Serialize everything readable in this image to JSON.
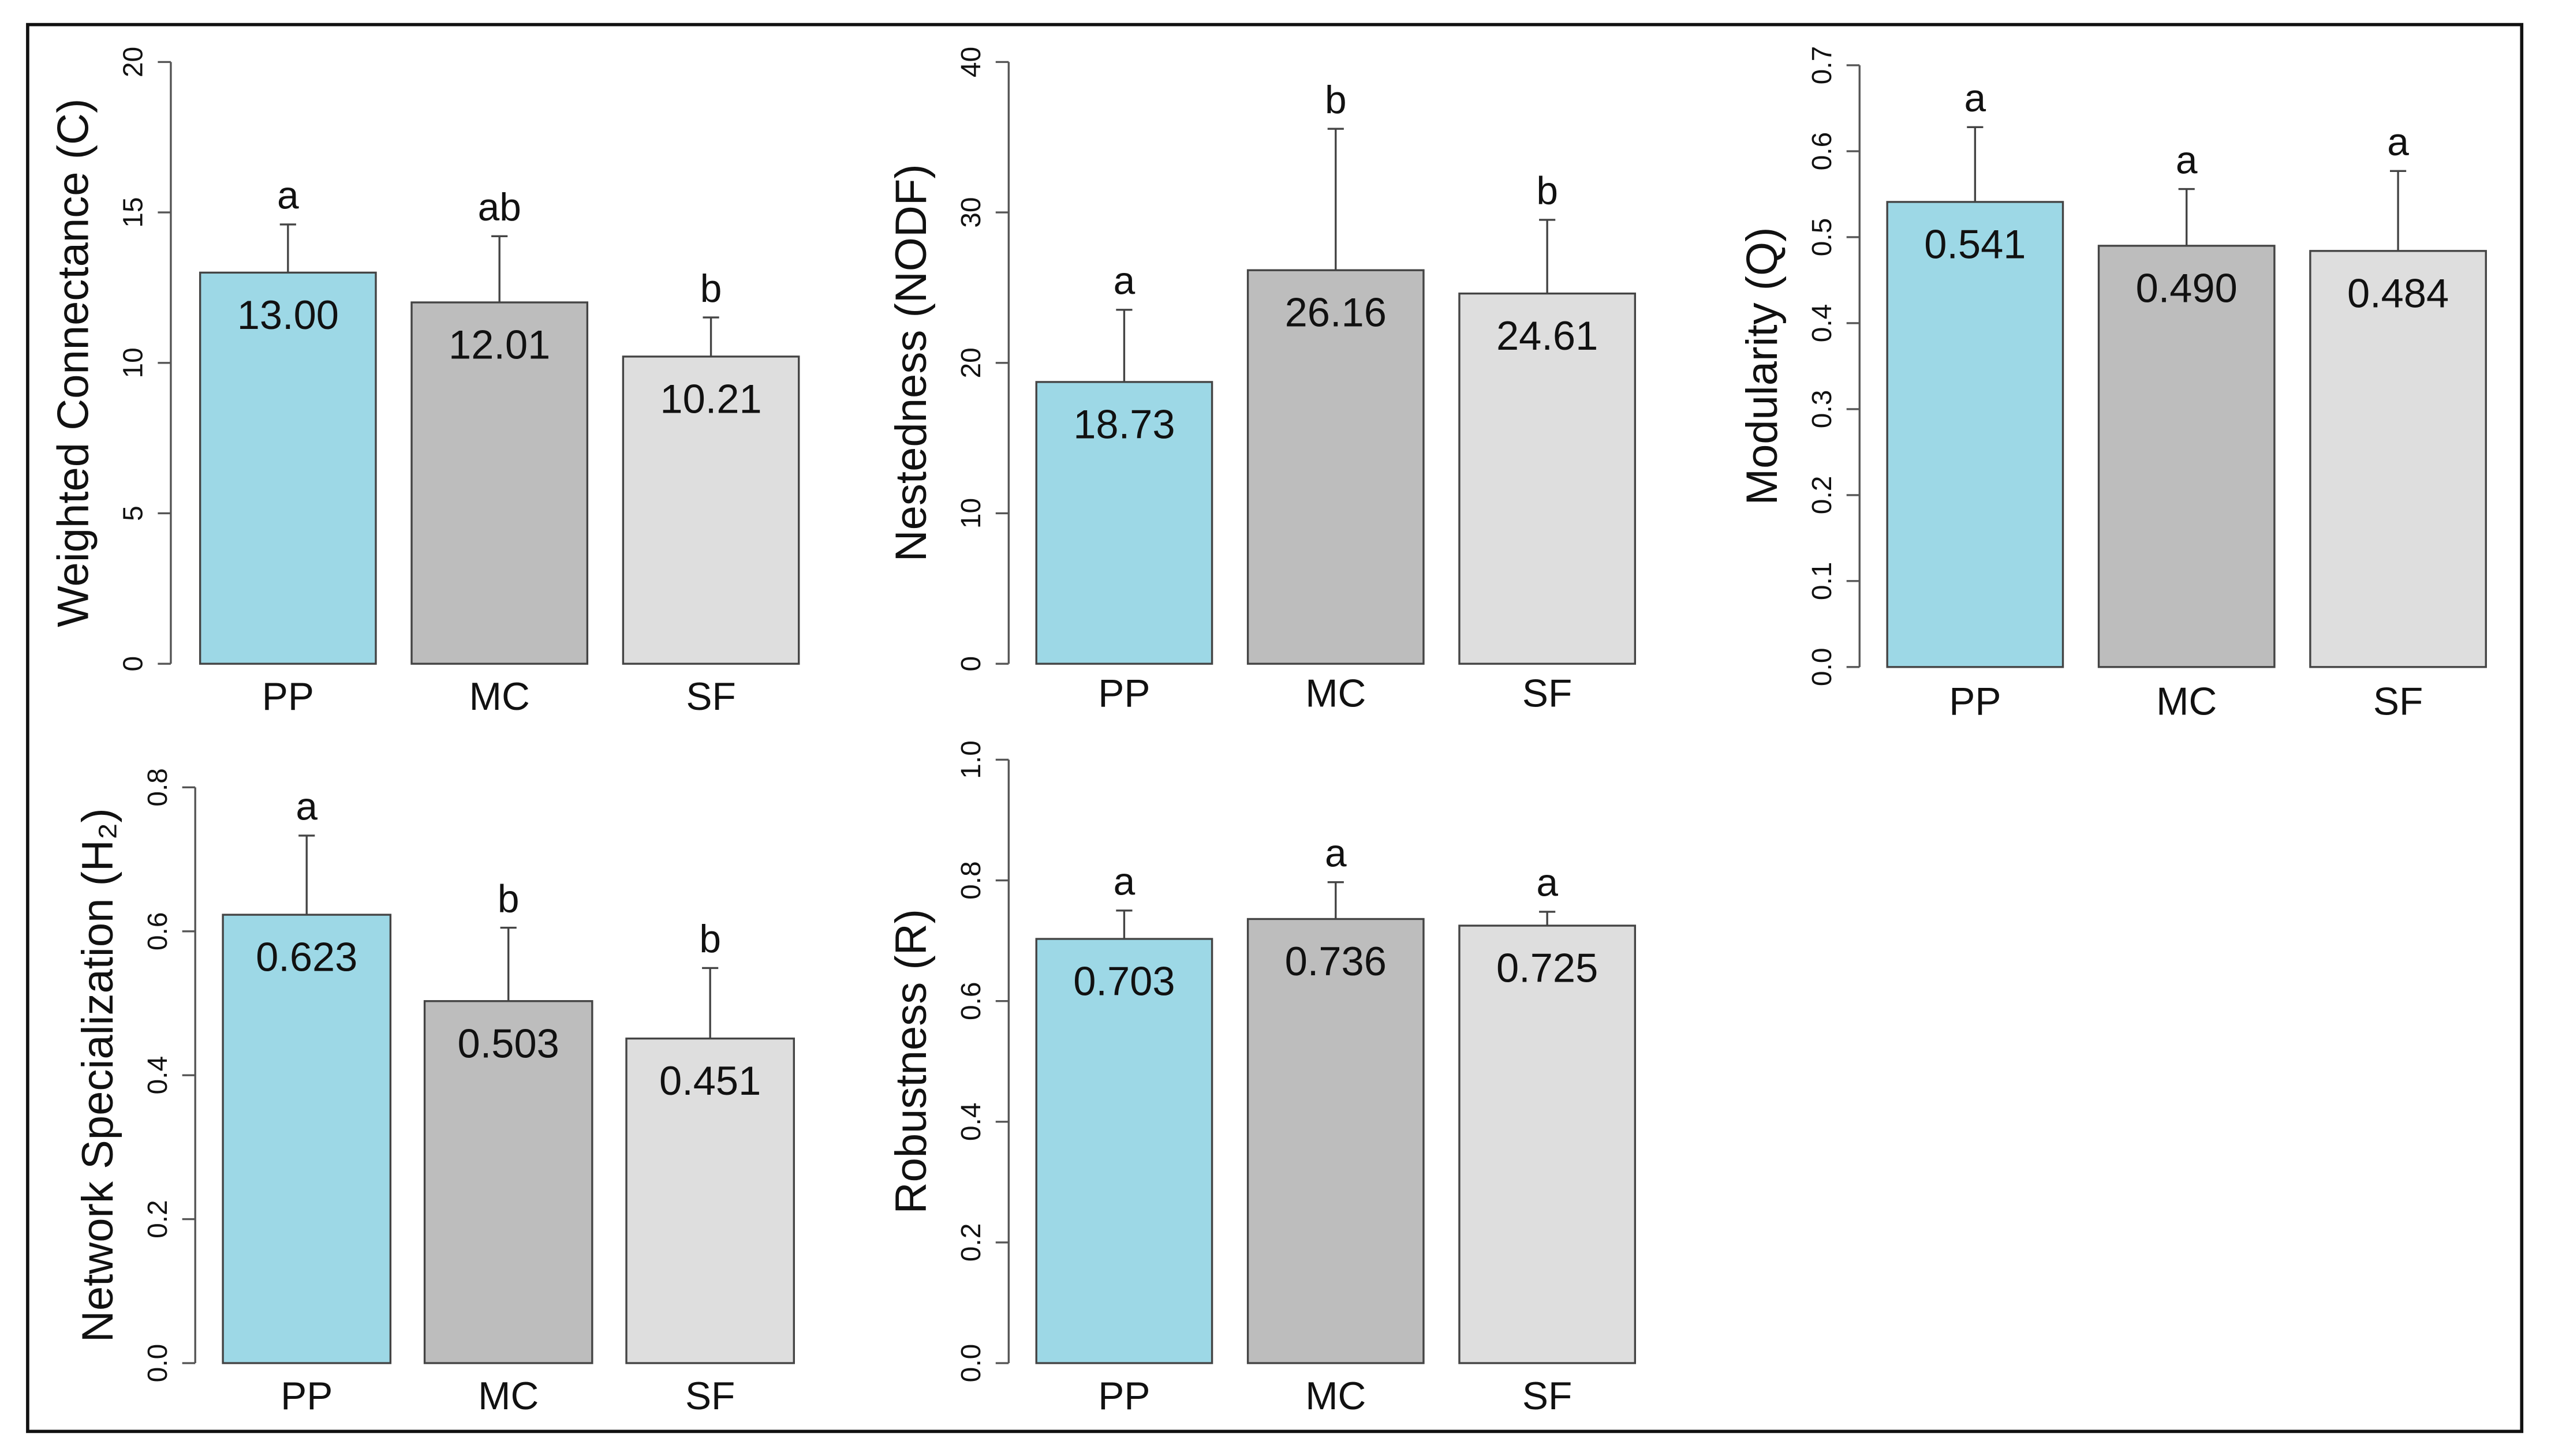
{
  "chart_data": [
    {
      "type": "bar",
      "ylabel": "Weighted Connectance (C)",
      "categories": [
        "PP",
        "MC",
        "SF"
      ],
      "values": [
        13.0,
        12.01,
        10.21
      ],
      "value_labels": [
        "13.00",
        "12.01",
        "10.21"
      ],
      "errors": [
        1.6,
        2.2,
        1.3
      ],
      "annotations": [
        "a",
        "ab",
        "b"
      ],
      "colors": [
        "#9dd8e6",
        "#bdbdbd",
        "#dedede"
      ],
      "ylim": [
        0,
        20
      ],
      "yticks": [
        0,
        5,
        10,
        15,
        20
      ]
    },
    {
      "type": "bar",
      "ylabel": "Nestedness (NODF)",
      "categories": [
        "PP",
        "MC",
        "SF"
      ],
      "values": [
        18.73,
        26.16,
        24.61
      ],
      "errors": [
        4.8,
        9.4,
        4.9
      ],
      "annotations": [
        "a",
        "b",
        "b"
      ],
      "colors": [
        "#9dd8e6",
        "#bdbdbd",
        "#dedede"
      ],
      "ylim": [
        0,
        40
      ],
      "yticks": [
        0,
        10,
        20,
        30,
        40
      ]
    },
    {
      "type": "bar",
      "ylabel": "Modularity (Q)",
      "categories": [
        "PP",
        "MC",
        "SF"
      ],
      "values": [
        0.541,
        0.49,
        0.484
      ],
      "value_labels": [
        "0.541",
        "0.490",
        "0.484"
      ],
      "errors": [
        0.087,
        0.066,
        0.093
      ],
      "annotations": [
        "a",
        "a",
        "a"
      ],
      "colors": [
        "#9dd8e6",
        "#bdbdbd",
        "#dedede"
      ],
      "ylim": [
        0,
        0.7
      ],
      "yticks": [
        {
          "value": 0,
          "label": "0.0"
        },
        0.1,
        0.2,
        0.3,
        0.4,
        0.5,
        0.6,
        0.7
      ]
    },
    {
      "type": "bar",
      "ylabel": "Network Specialization (H₂)",
      "categories": [
        "PP",
        "MC",
        "SF"
      ],
      "values": [
        0.623,
        0.503,
        0.451
      ],
      "errors": [
        0.11,
        0.102,
        0.098
      ],
      "annotations": [
        "a",
        "b",
        "b"
      ],
      "colors": [
        "#9dd8e6",
        "#bdbdbd",
        "#dedede"
      ],
      "ylim": [
        0,
        0.8
      ],
      "yticks": [
        {
          "value": 0,
          "label": "0.0"
        },
        0.2,
        0.4,
        0.6,
        0.8
      ]
    },
    {
      "type": "bar",
      "ylabel": "Robustness (R)",
      "categories": [
        "PP",
        "MC",
        "SF"
      ],
      "values": [
        0.703,
        0.736,
        0.725
      ],
      "errors": [
        0.047,
        0.061,
        0.023
      ],
      "annotations": [
        "a",
        "a",
        "a"
      ],
      "colors": [
        "#9dd8e6",
        "#bdbdbd",
        "#dedede"
      ],
      "ylim": [
        0,
        1.0
      ],
      "yticks": [
        {
          "value": 0,
          "label": "0.0"
        },
        0.2,
        0.4,
        0.6,
        0.8,
        {
          "value": 1,
          "label": "1.0"
        }
      ]
    }
  ]
}
